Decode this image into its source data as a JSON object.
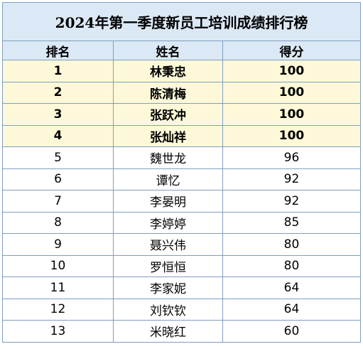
{
  "title": "2024年第一季度新员工培训成绩排行榜",
  "headers": {
    "rank": "排名",
    "name": "姓名",
    "score": "得分"
  },
  "rows": [
    {
      "rank": "1",
      "name": "林秉忠",
      "score": "100",
      "highlight": true
    },
    {
      "rank": "2",
      "name": "陈清梅",
      "score": "100",
      "highlight": true
    },
    {
      "rank": "3",
      "name": "张跃冲",
      "score": "100",
      "highlight": true
    },
    {
      "rank": "4",
      "name": "张灿祥",
      "score": "100",
      "highlight": true
    },
    {
      "rank": "5",
      "name": "魏世龙",
      "score": "96",
      "highlight": false
    },
    {
      "rank": "6",
      "name": "谭忆",
      "score": "92",
      "highlight": false
    },
    {
      "rank": "7",
      "name": "李晏明",
      "score": "92",
      "highlight": false
    },
    {
      "rank": "8",
      "name": "李婷婷",
      "score": "85",
      "highlight": false
    },
    {
      "rank": "9",
      "name": "聂兴伟",
      "score": "80",
      "highlight": false
    },
    {
      "rank": "10",
      "name": "罗恒恒",
      "score": "80",
      "highlight": false
    },
    {
      "rank": "11",
      "name": "李家妮",
      "score": "64",
      "highlight": false
    },
    {
      "rank": "12",
      "name": "刘钦钦",
      "score": "64",
      "highlight": false
    },
    {
      "rank": "13",
      "name": "米晓红",
      "score": "60",
      "highlight": false
    }
  ],
  "colors": {
    "header_bg": "#dbe9f6",
    "highlight_bg": "#fdf9d8",
    "border": "#7f9ebf"
  }
}
